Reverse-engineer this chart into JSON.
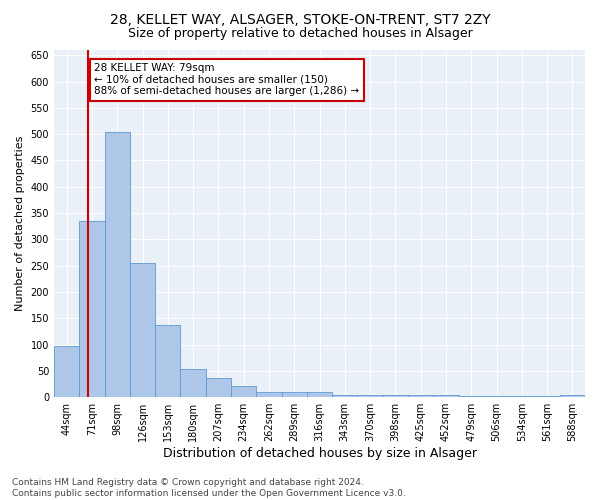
{
  "title1": "28, KELLET WAY, ALSAGER, STOKE-ON-TRENT, ST7 2ZY",
  "title2": "Size of property relative to detached houses in Alsager",
  "xlabel": "Distribution of detached houses by size in Alsager",
  "ylabel": "Number of detached properties",
  "categories": [
    "44sqm",
    "71sqm",
    "98sqm",
    "126sqm",
    "153sqm",
    "180sqm",
    "207sqm",
    "234sqm",
    "262sqm",
    "289sqm",
    "316sqm",
    "343sqm",
    "370sqm",
    "398sqm",
    "425sqm",
    "452sqm",
    "479sqm",
    "506sqm",
    "534sqm",
    "561sqm",
    "588sqm"
  ],
  "values": [
    97,
    335,
    505,
    255,
    138,
    53,
    37,
    21,
    10,
    10,
    10,
    5,
    5,
    5,
    5,
    5,
    2,
    2,
    2,
    2,
    5
  ],
  "bar_color": "#aec6e8",
  "bar_edge_color": "#5b9bd5",
  "vline_color": "#cc0000",
  "vline_x_index": 0.85,
  "annotation_text": "28 KELLET WAY: 79sqm\n← 10% of detached houses are smaller (150)\n88% of semi-detached houses are larger (1,286) →",
  "annotation_box_facecolor": "#ffffff",
  "annotation_box_edgecolor": "#cc0000",
  "ylim": [
    0,
    660
  ],
  "yticks": [
    0,
    50,
    100,
    150,
    200,
    250,
    300,
    350,
    400,
    450,
    500,
    550,
    600,
    650
  ],
  "background_color": "#eaf0f8",
  "grid_color": "#ffffff",
  "footer": "Contains HM Land Registry data © Crown copyright and database right 2024.\nContains public sector information licensed under the Open Government Licence v3.0.",
  "title1_fontsize": 10,
  "title2_fontsize": 9,
  "xlabel_fontsize": 9,
  "ylabel_fontsize": 8,
  "tick_fontsize": 7,
  "annotation_fontsize": 7.5,
  "footer_fontsize": 6.5
}
